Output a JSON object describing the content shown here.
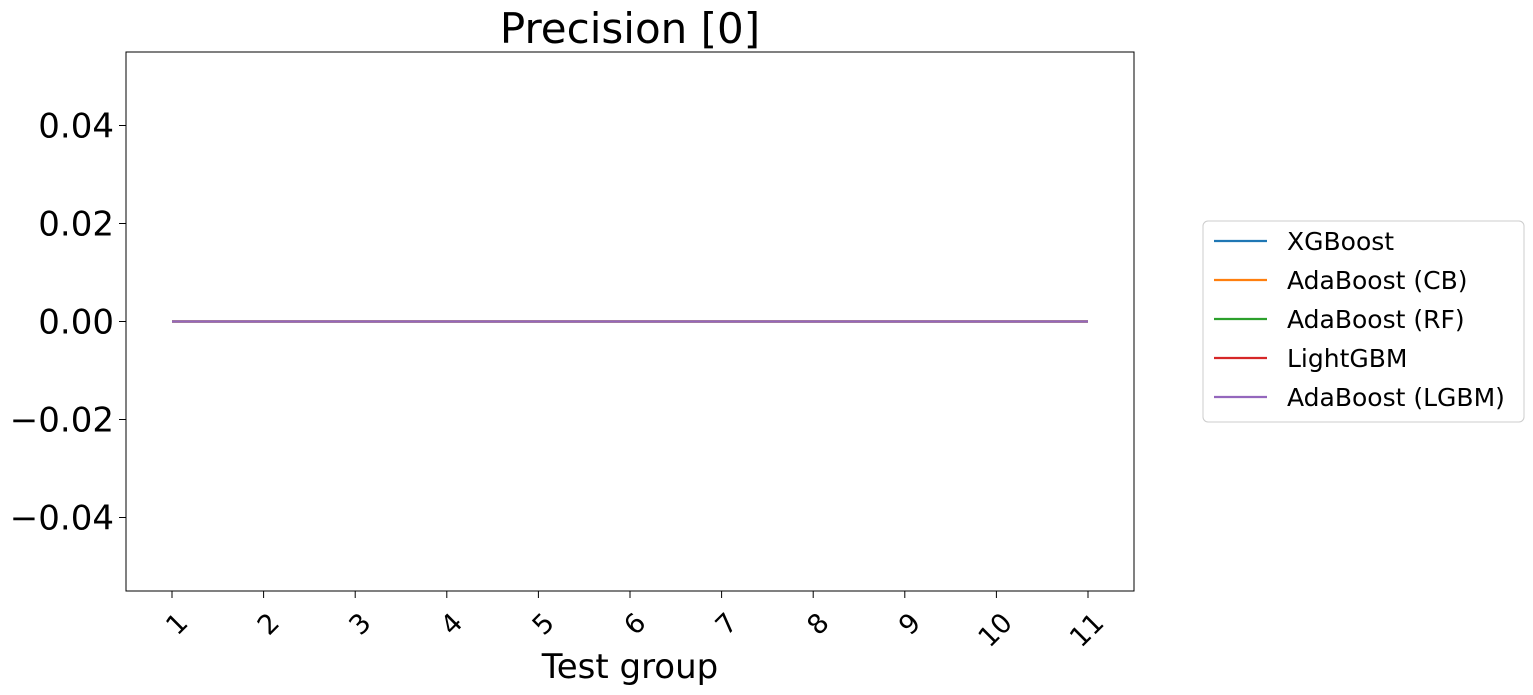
{
  "chart_data": {
    "type": "line",
    "title": "Precision [0]",
    "xlabel": "Test group",
    "ylabel": "",
    "categories": [
      "1",
      "2",
      "3",
      "4",
      "5",
      "6",
      "7",
      "8",
      "9",
      "10",
      "11"
    ],
    "ylim": [
      -0.055,
      0.055
    ],
    "yticks": [
      -0.04,
      -0.02,
      0.0,
      0.02,
      0.04
    ],
    "ytick_labels": [
      "−0.04",
      "−0.02",
      "0.00",
      "0.02",
      "0.04"
    ],
    "grid": false,
    "legend_position": "center-right (outside plot)",
    "series": [
      {
        "name": "XGBoost",
        "color": "#1f77b4",
        "values": [
          0,
          0,
          0,
          0,
          0,
          0,
          0,
          0,
          0,
          0,
          0
        ]
      },
      {
        "name": "AdaBoost (CB)",
        "color": "#ff7f0e",
        "values": [
          0,
          0,
          0,
          0,
          0,
          0,
          0,
          0,
          0,
          0,
          0
        ]
      },
      {
        "name": "AdaBoost (RF)",
        "color": "#2ca02c",
        "values": [
          0,
          0,
          0,
          0,
          0,
          0,
          0,
          0,
          0,
          0,
          0
        ]
      },
      {
        "name": "LightGBM",
        "color": "#d62728",
        "values": [
          0,
          0,
          0,
          0,
          0,
          0,
          0,
          0,
          0,
          0,
          0
        ]
      },
      {
        "name": "AdaBoost (LGBM)",
        "color": "#9467bd",
        "values": [
          0,
          0,
          0,
          0,
          0,
          0,
          0,
          0,
          0,
          0,
          0
        ]
      }
    ]
  }
}
